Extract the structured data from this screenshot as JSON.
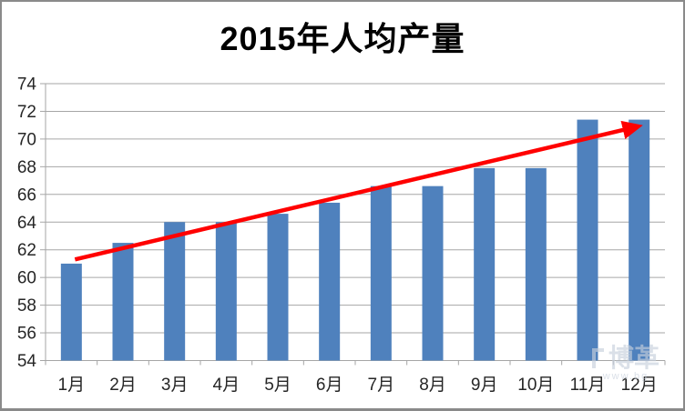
{
  "page": {
    "background": "#FFFFFF",
    "border_color": "#8A8A8A"
  },
  "title": "2015年人均产量",
  "watermark": {
    "name": "博革",
    "subtext": "www.bg"
  },
  "chart_data": {
    "type": "bar",
    "title": "2015年人均产量",
    "categories": [
      "1月",
      "2月",
      "3月",
      "4月",
      "5月",
      "6月",
      "7月",
      "8月",
      "9月",
      "10月",
      "11月",
      "12月"
    ],
    "values": [
      61.0,
      62.5,
      64.0,
      64.0,
      64.6,
      65.4,
      66.6,
      66.6,
      67.9,
      67.9,
      71.4,
      71.4
    ],
    "ylim": [
      54,
      74
    ],
    "yticks": [
      54,
      56,
      58,
      60,
      62,
      64,
      66,
      68,
      70,
      72,
      74
    ],
    "xlabel": "",
    "ylabel": "",
    "grid": true,
    "legend": "none",
    "bar_color": "#4F81BD",
    "grid_color": "#A6A6A6",
    "axis_color": "#A6A6A6",
    "text_color": "#262626",
    "annotations": [
      {
        "type": "arrow",
        "color": "#FF0000",
        "from": {
          "category_index": 0,
          "value": 61.3
        },
        "to": {
          "category_index": 11,
          "value": 70.9
        }
      }
    ]
  }
}
